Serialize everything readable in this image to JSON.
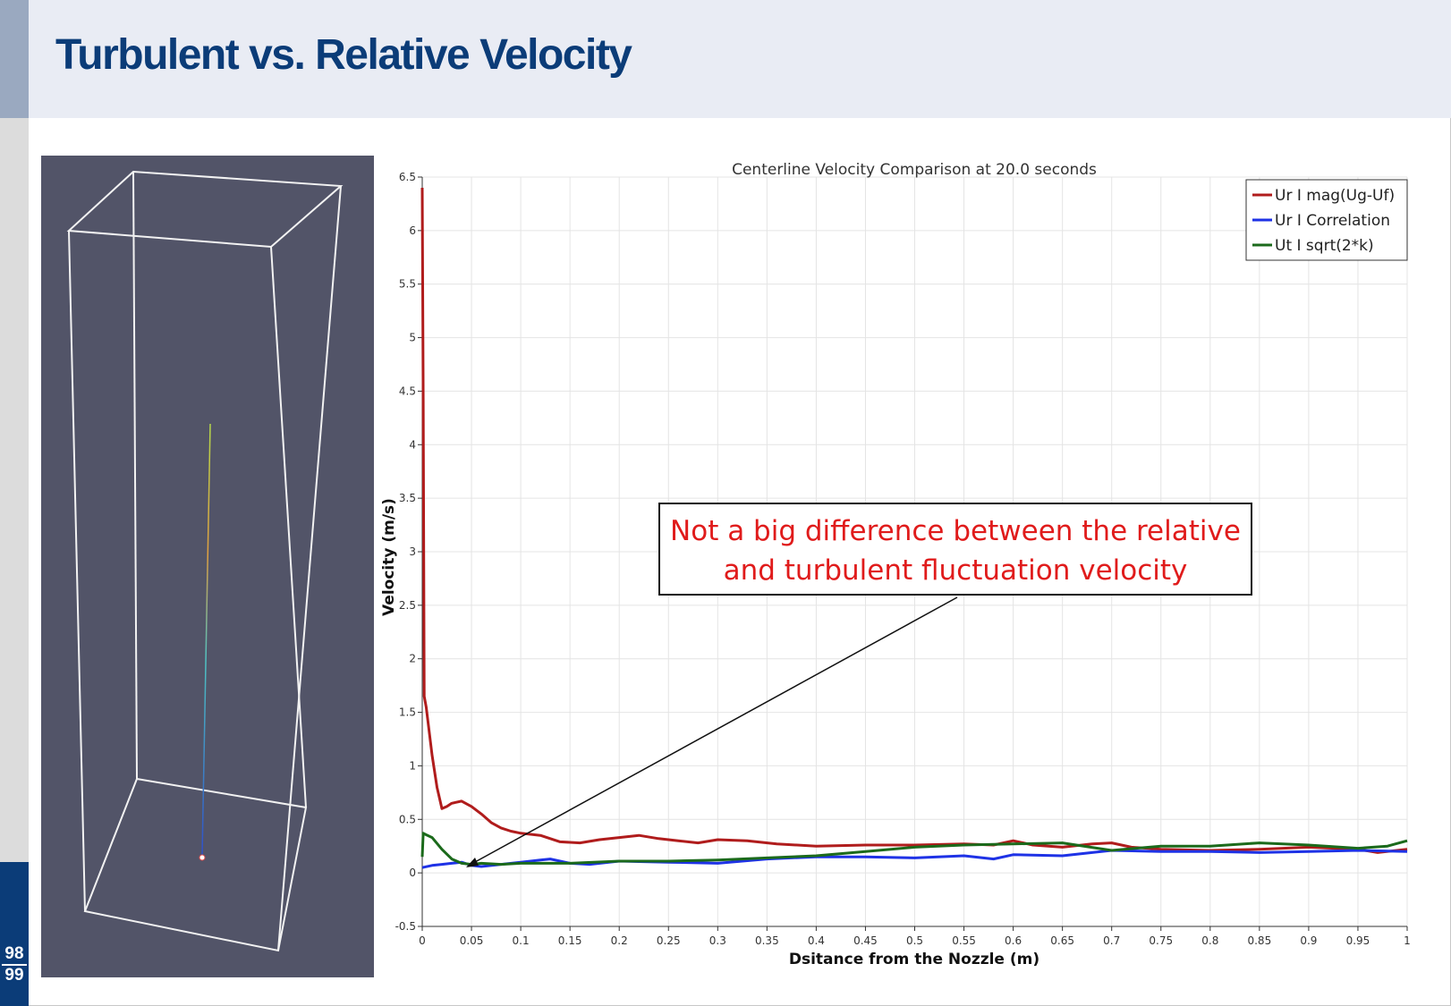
{
  "slide": {
    "title": "Turbulent vs. Relative Velocity",
    "page_current": "98",
    "page_total": "99"
  },
  "callout": {
    "line1": "Not a big difference between the relative",
    "line2": "and turbulent fluctuation velocity"
  },
  "colors": {
    "title": "#0b3c78",
    "callout_text": "#e01b1b",
    "viewport_bg": "#525468"
  },
  "chart_data": {
    "type": "line",
    "title": "Centerline Velocity Comparison at 20.0 seconds",
    "xlabel": "Dsitance from the Nozzle (m)",
    "ylabel": "Velocity (m/s)",
    "xlim": [
      0,
      1
    ],
    "ylim": [
      -0.5,
      6.5
    ],
    "xticks": [
      0,
      0.05,
      0.1,
      0.15,
      0.2,
      0.25,
      0.3,
      0.35,
      0.4,
      0.45,
      0.5,
      0.55,
      0.6,
      0.65,
      0.7,
      0.75,
      0.8,
      0.85,
      0.9,
      0.95,
      1
    ],
    "xtick_labels": [
      "0",
      "0.05",
      "0.1",
      "0.15",
      "0.2",
      "0.25",
      "0.3",
      "0.35",
      "0.4",
      "0.45",
      "0.5",
      "0.55",
      "0.6",
      "0.65",
      "0.7",
      "0.75",
      "0.8",
      "0.85",
      "0.9",
      "0.95",
      "1"
    ],
    "yticks": [
      -0.5,
      0,
      0.5,
      1,
      1.5,
      2,
      2.5,
      3,
      3.5,
      4,
      4.5,
      5,
      5.5,
      6,
      6.5
    ],
    "ytick_labels": [
      "-0.5",
      "0",
      "0.5",
      "1",
      "1.5",
      "2",
      "2.5",
      "3",
      "3.5",
      "4",
      "4.5",
      "5",
      "5.5",
      "6",
      "6.5"
    ],
    "grid": true,
    "legend_position": "top-right",
    "series": [
      {
        "name": "Ur I mag(Ug-Uf)",
        "color": "#b01c1c",
        "x": [
          0,
          0.001,
          0.002,
          0.004,
          0.006,
          0.01,
          0.015,
          0.02,
          0.025,
          0.03,
          0.04,
          0.05,
          0.06,
          0.07,
          0.08,
          0.09,
          0.1,
          0.12,
          0.14,
          0.16,
          0.18,
          0.2,
          0.22,
          0.24,
          0.26,
          0.28,
          0.3,
          0.33,
          0.36,
          0.4,
          0.45,
          0.5,
          0.55,
          0.58,
          0.6,
          0.62,
          0.65,
          0.68,
          0.7,
          0.72,
          0.75,
          0.8,
          0.85,
          0.9,
          0.95,
          0.97,
          1
        ],
        "y": [
          6.4,
          4.4,
          1.65,
          1.55,
          1.4,
          1.1,
          0.8,
          0.6,
          0.62,
          0.65,
          0.67,
          0.62,
          0.55,
          0.47,
          0.42,
          0.39,
          0.37,
          0.35,
          0.29,
          0.28,
          0.31,
          0.33,
          0.35,
          0.32,
          0.3,
          0.28,
          0.31,
          0.3,
          0.27,
          0.25,
          0.26,
          0.26,
          0.27,
          0.26,
          0.3,
          0.26,
          0.24,
          0.27,
          0.28,
          0.24,
          0.22,
          0.21,
          0.22,
          0.24,
          0.22,
          0.19,
          0.22
        ]
      },
      {
        "name": "Ur I Correlation",
        "color": "#1e32e6",
        "x": [
          0,
          0.01,
          0.02,
          0.03,
          0.04,
          0.05,
          0.06,
          0.08,
          0.1,
          0.12,
          0.13,
          0.15,
          0.17,
          0.2,
          0.25,
          0.3,
          0.35,
          0.4,
          0.45,
          0.5,
          0.55,
          0.58,
          0.6,
          0.65,
          0.7,
          0.75,
          0.8,
          0.85,
          0.9,
          0.95,
          1
        ],
        "y": [
          0.05,
          0.07,
          0.08,
          0.09,
          0.1,
          0.07,
          0.06,
          0.08,
          0.1,
          0.12,
          0.13,
          0.09,
          0.08,
          0.11,
          0.1,
          0.09,
          0.13,
          0.15,
          0.15,
          0.14,
          0.16,
          0.13,
          0.17,
          0.16,
          0.21,
          0.2,
          0.2,
          0.19,
          0.2,
          0.21,
          0.2
        ]
      },
      {
        "name": "Ut I sqrt(2*k)",
        "color": "#1b6a1b",
        "x": [
          0,
          0.001,
          0.003,
          0.01,
          0.02,
          0.03,
          0.04,
          0.05,
          0.06,
          0.08,
          0.1,
          0.15,
          0.2,
          0.25,
          0.3,
          0.35,
          0.4,
          0.45,
          0.5,
          0.55,
          0.6,
          0.65,
          0.7,
          0.75,
          0.8,
          0.85,
          0.9,
          0.95,
          0.98,
          1
        ],
        "y": [
          0.15,
          0.37,
          0.36,
          0.33,
          0.22,
          0.13,
          0.09,
          0.08,
          0.09,
          0.08,
          0.09,
          0.09,
          0.11,
          0.11,
          0.12,
          0.14,
          0.16,
          0.2,
          0.24,
          0.26,
          0.27,
          0.28,
          0.21,
          0.25,
          0.25,
          0.28,
          0.26,
          0.23,
          0.25,
          0.3
        ]
      }
    ]
  }
}
